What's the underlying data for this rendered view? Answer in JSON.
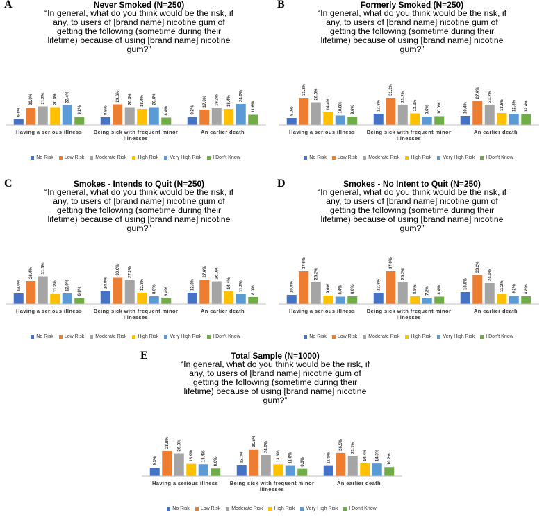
{
  "chart_data": [
    {
      "type": "bar",
      "panel": "A",
      "title": "Never Smoked (N=250)",
      "subtitle": "“In general, what do you think would be the risk, if any, to users of [brand name] nicotine gum of getting the following (sometime during their lifetime) because of using [brand name] nicotine gum?”",
      "categories": [
        "Having a serious illness",
        "Being sick with frequent minor illnesses",
        "An earlier death"
      ],
      "series": [
        {
          "name": "No Risk",
          "color": "#4472c4",
          "values": [
            6.8,
            8.8,
            9.2
          ],
          "value_labels": [
            "6.8%",
            "8.8%",
            "9.2%"
          ]
        },
        {
          "name": "Low Risk",
          "color": "#ed7d31",
          "values": [
            20.0,
            23.6,
            17.6
          ],
          "value_labels": [
            "20.0%",
            "23.6%",
            "17.6%"
          ]
        },
        {
          "name": "Moderate Risk",
          "color": "#a5a5a5",
          "values": [
            21.2,
            20.4,
            19.2
          ],
          "value_labels": [
            "21.2%",
            "20.4%",
            "19.2%"
          ]
        },
        {
          "name": "High Risk",
          "color": "#ffc000",
          "values": [
            20.4,
            18.4,
            18.4
          ],
          "value_labels": [
            "20.4%",
            "18.4%",
            "18.4%"
          ]
        },
        {
          "name": "Very High Risk",
          "color": "#5b9bd5",
          "values": [
            22.4,
            20.4,
            24.0
          ],
          "value_labels": [
            "22.4%",
            "20.4%",
            "24.0%"
          ]
        },
        {
          "name": "I Don't Know",
          "color": "#70ad47",
          "values": [
            9.2,
            8.4,
            11.6
          ],
          "value_labels": [
            "9.2%",
            "8.4%",
            "11.6%"
          ]
        }
      ]
    },
    {
      "type": "bar",
      "panel": "B",
      "title": "Formerly Smoked (N=250)",
      "subtitle": "“In general, what do you think would be the risk, if any, to users of [brand name] nicotine gum of getting the following (sometime during their lifetime) because of using [brand name] nicotine gum?”",
      "categories": [
        "Having a serious illness",
        "Being sick with frequent minor illnesses",
        "An earlier death"
      ],
      "series": [
        {
          "name": "No Risk",
          "color": "#4472c4",
          "values": [
            8.0,
            12.8,
            10.4
          ],
          "value_labels": [
            "8.0%",
            "12.8%",
            "10.4%"
          ]
        },
        {
          "name": "Low Risk",
          "color": "#ed7d31",
          "values": [
            31.2,
            31.2,
            27.6
          ],
          "value_labels": [
            "31.2%",
            "31.2%",
            "27.6%"
          ]
        },
        {
          "name": "Moderate Risk",
          "color": "#a5a5a5",
          "values": [
            26.0,
            23.2,
            23.2
          ],
          "value_labels": [
            "26.0%",
            "23.2%",
            "23.2%"
          ]
        },
        {
          "name": "High Risk",
          "color": "#ffc000",
          "values": [
            14.4,
            13.2,
            13.6
          ],
          "value_labels": [
            "14.4%",
            "13.2%",
            "13.6%"
          ]
        },
        {
          "name": "Very High Risk",
          "color": "#5b9bd5",
          "values": [
            10.8,
            9.6,
            12.8
          ],
          "value_labels": [
            "10.8%",
            "9.6%",
            "12.8%"
          ]
        },
        {
          "name": "I Don't Know",
          "color": "#70ad47",
          "values": [
            9.6,
            10.0,
            12.4
          ],
          "value_labels": [
            "9.6%",
            "10.0%",
            "12.4%"
          ]
        }
      ]
    },
    {
      "type": "bar",
      "panel": "C",
      "title": "Smokes - Intends to Quit (N=250)",
      "subtitle": "“In general, what do you think would be the risk, if any, to users of [brand name] nicotine gum of getting the following (sometime during their lifetime) because of using [brand name] nicotine gum?”",
      "categories": [
        "Having a serious illness",
        "Being sick with frequent minor illnesses",
        "An earlier death"
      ],
      "series": [
        {
          "name": "No Risk",
          "color": "#4472c4",
          "values": [
            12.0,
            14.8,
            12.8
          ],
          "value_labels": [
            "12.0%",
            "14.8%",
            "12.8%"
          ]
        },
        {
          "name": "Low Risk",
          "color": "#ed7d31",
          "values": [
            26.4,
            30.0,
            27.6
          ],
          "value_labels": [
            "26.4%",
            "30.0%",
            "27.6%"
          ]
        },
        {
          "name": "Moderate Risk",
          "color": "#a5a5a5",
          "values": [
            31.6,
            27.2,
            26.0
          ],
          "value_labels": [
            "31.6%",
            "27.2%",
            "26.0%"
          ]
        },
        {
          "name": "High Risk",
          "color": "#ffc000",
          "values": [
            11.2,
            12.8,
            14.4
          ],
          "value_labels": [
            "11.2%",
            "12.8%",
            "14.4%"
          ]
        },
        {
          "name": "Very High Risk",
          "color": "#5b9bd5",
          "values": [
            12.0,
            8.8,
            11.2
          ],
          "value_labels": [
            "12.0%",
            "8.8%",
            "11.2%"
          ]
        },
        {
          "name": "I Don't Know",
          "color": "#70ad47",
          "values": [
            6.8,
            6.4,
            8.0
          ],
          "value_labels": [
            "6.8%",
            "6.4%",
            "8.0%"
          ]
        }
      ]
    },
    {
      "type": "bar",
      "panel": "D",
      "title": "Smokes - No Intent to Quit (N=250)",
      "subtitle": "“In general, what do you think would be the risk, if any, to users of [brand name] nicotine gum of getting the following (sometime during their lifetime) because of using [brand name] nicotine gum?”",
      "categories": [
        "Having a serious illness",
        "Being sick with frequent minor illnesses",
        "An earlier death"
      ],
      "series": [
        {
          "name": "No Risk",
          "color": "#4472c4",
          "values": [
            10.4,
            12.8,
            13.6
          ],
          "value_labels": [
            "10.4%",
            "12.8%",
            "13.6%"
          ]
        },
        {
          "name": "Low Risk",
          "color": "#ed7d31",
          "values": [
            37.6,
            37.6,
            33.2
          ],
          "value_labels": [
            "37.6%",
            "37.6%",
            "33.2%"
          ]
        },
        {
          "name": "Moderate Risk",
          "color": "#a5a5a5",
          "values": [
            25.2,
            25.2,
            24.0
          ],
          "value_labels": [
            "25.2%",
            "25.2%",
            "24.0%"
          ]
        },
        {
          "name": "High Risk",
          "color": "#ffc000",
          "values": [
            9.6,
            8.8,
            11.2
          ],
          "value_labels": [
            "9.6%",
            "8.8%",
            "11.2%"
          ]
        },
        {
          "name": "Very High Risk",
          "color": "#5b9bd5",
          "values": [
            8.4,
            7.2,
            9.2
          ],
          "value_labels": [
            "8.4%",
            "7.2%",
            "9.2%"
          ]
        },
        {
          "name": "I Don't Know",
          "color": "#70ad47",
          "values": [
            8.8,
            8.4,
            8.8
          ],
          "value_labels": [
            "8.8%",
            "8.4%",
            "8.8%"
          ]
        }
      ]
    },
    {
      "type": "bar",
      "panel": "E",
      "title": "Total Sample (N=1000)",
      "subtitle": "“In general, what do you think would be the risk, if any, to users of [brand name] nicotine gum of getting the following (sometime during their lifetime) because of using [brand name] nicotine gum?”",
      "categories": [
        "Having a serious illness",
        "Being sick with frequent minor illnesses",
        "An earlier death"
      ],
      "series": [
        {
          "name": "No Risk",
          "color": "#4472c4",
          "values": [
            9.3,
            12.3,
            11.5
          ],
          "value_labels": [
            "9.3%",
            "12.3%",
            "11.5%"
          ]
        },
        {
          "name": "Low Risk",
          "color": "#ed7d31",
          "values": [
            28.8,
            30.6,
            26.5
          ],
          "value_labels": [
            "28.8%",
            "30.6%",
            "26.5%"
          ]
        },
        {
          "name": "Moderate Risk",
          "color": "#a5a5a5",
          "values": [
            26.0,
            24.0,
            23.1
          ],
          "value_labels": [
            "26.0%",
            "24.0%",
            "23.1%"
          ]
        },
        {
          "name": "High Risk",
          "color": "#ffc000",
          "values": [
            13.9,
            13.3,
            14.4
          ],
          "value_labels": [
            "13.9%",
            "13.3%",
            "14.4%"
          ]
        },
        {
          "name": "Very High Risk",
          "color": "#5b9bd5",
          "values": [
            13.4,
            11.6,
            14.3
          ],
          "value_labels": [
            "13.4%",
            "11.6%",
            "14.3%"
          ]
        },
        {
          "name": "I Don't Know",
          "color": "#70ad47",
          "values": [
            8.6,
            8.3,
            10.2
          ],
          "value_labels": [
            "8.6%",
            "8.3%",
            "10.2%"
          ]
        }
      ]
    }
  ]
}
